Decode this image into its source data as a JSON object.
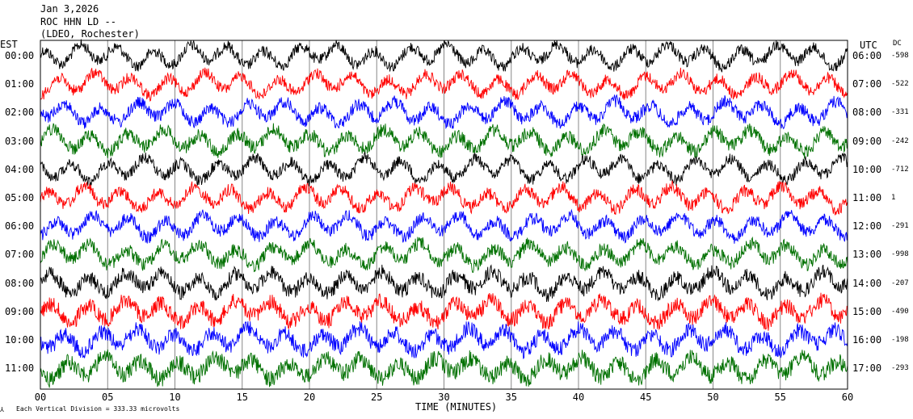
{
  "header": {
    "date": "Jan 3,2026",
    "station": "ROC HHN LD --",
    "institution": "(LDEO, Rochester)"
  },
  "chart_data": {
    "type": "line",
    "title": "Jan 3,2026",
    "left_axis_label": "EST",
    "right_axis_label": "UTC",
    "dc_label": "DC",
    "xlabel": "TIME (MINUTES)",
    "xlim": [
      0,
      60
    ],
    "x_ticks": [
      "00",
      "05",
      "10",
      "15",
      "20",
      "25",
      "30",
      "35",
      "40",
      "45",
      "50",
      "55",
      "60"
    ],
    "footnote": "Each Vertical Division = 333.33 microvolts",
    "trace_colors": [
      "#000000",
      "#ff0000",
      "#0000ff",
      "#007000"
    ],
    "rows": [
      {
        "est": "00:00",
        "utc": "06:00",
        "dc": "-598",
        "color": "#000000",
        "noise": 1.0
      },
      {
        "est": "01:00",
        "utc": "07:00",
        "dc": "-522",
        "color": "#ff0000",
        "noise": 1.0
      },
      {
        "est": "02:00",
        "utc": "08:00",
        "dc": "-331",
        "color": "#0000ff",
        "noise": 1.1
      },
      {
        "est": "03:00",
        "utc": "09:00",
        "dc": "-242",
        "color": "#007000",
        "noise": 1.2
      },
      {
        "est": "04:00",
        "utc": "10:00",
        "dc": "-712",
        "color": "#000000",
        "noise": 1.0
      },
      {
        "est": "05:00",
        "utc": "11:00",
        "dc": "1",
        "color": "#ff0000",
        "noise": 1.1
      },
      {
        "est": "06:00",
        "utc": "12:00",
        "dc": "-291",
        "color": "#0000ff",
        "noise": 1.1
      },
      {
        "est": "07:00",
        "utc": "13:00",
        "dc": "-998",
        "color": "#007000",
        "noise": 1.2
      },
      {
        "est": "08:00",
        "utc": "14:00",
        "dc": "-207",
        "color": "#000000",
        "noise": 1.3
      },
      {
        "est": "09:00",
        "utc": "15:00",
        "dc": "-490",
        "color": "#ff0000",
        "noise": 1.4
      },
      {
        "est": "10:00",
        "utc": "16:00",
        "dc": "-198",
        "color": "#0000ff",
        "noise": 1.4
      },
      {
        "est": "11:00",
        "utc": "17:00",
        "dc": "-293",
        "color": "#007000",
        "noise": 1.5
      }
    ]
  }
}
